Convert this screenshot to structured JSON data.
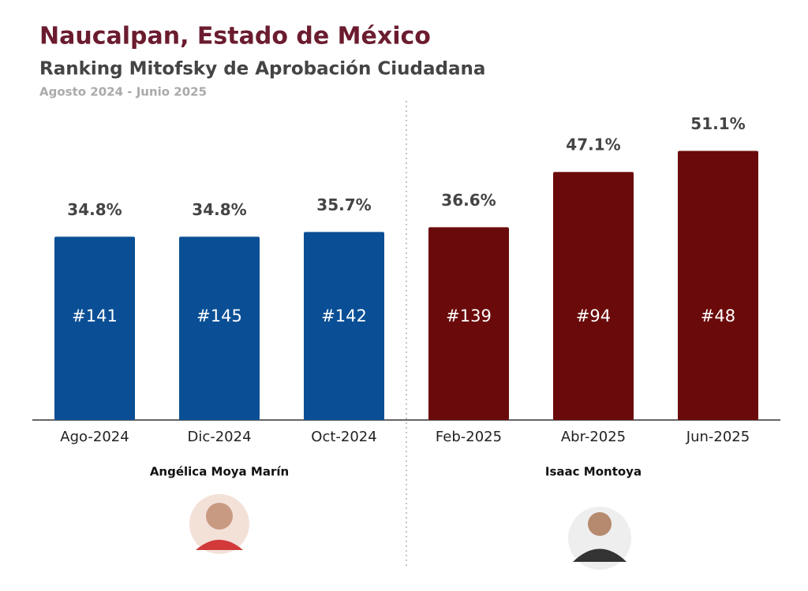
{
  "chart_data": {
    "type": "bar",
    "title": "Naucalpan, Estado de México",
    "subtitle": "Ranking Mitofsky de Aprobación Ciudadana",
    "period": "Agosto 2024 - Junio 2025",
    "categories": [
      "Ago-2024",
      "Dic-2024",
      "Oct-2024",
      "Feb-2025",
      "Abr-2025",
      "Jun-2025"
    ],
    "values": [
      34.8,
      34.8,
      35.7,
      36.6,
      47.1,
      51.1
    ],
    "value_labels": [
      "34.8%",
      "34.8%",
      "35.7%",
      "36.6%",
      "47.1%",
      "51.1%"
    ],
    "ranks": [
      "#141",
      "#145",
      "#142",
      "#139",
      "#94",
      "#48"
    ],
    "colors": [
      "#0a4f95",
      "#0a4f95",
      "#0a4f95",
      "#6b0a0a",
      "#6b0a0a",
      "#6b0a0a"
    ],
    "groups": [
      {
        "name": "Angélica Moya Marín",
        "categories": [
          "Ago-2024",
          "Dic-2024",
          "Oct-2024"
        ]
      },
      {
        "name": "Isaac Montoya",
        "categories": [
          "Feb-2025",
          "Abr-2025",
          "Jun-2025"
        ]
      }
    ],
    "ylim": [
      0,
      60
    ]
  }
}
